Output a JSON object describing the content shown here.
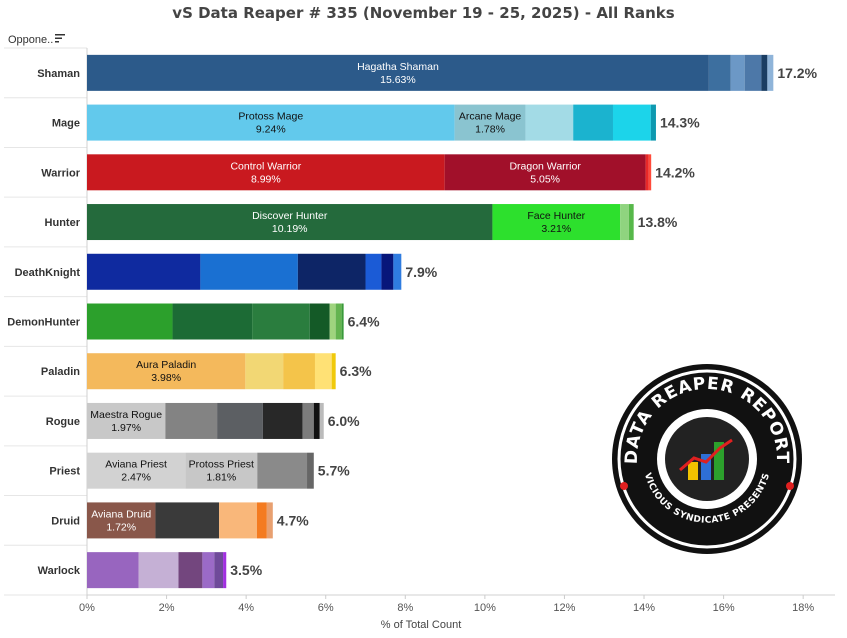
{
  "title": "vS Data Reaper # 335 (November 19 - 25, 2025) - All Ranks",
  "header_label": "Oppone..",
  "logo": {
    "line1": "DATA REAPER REPORT",
    "line2": "VICIOUS SYNDICATE PRESENTS"
  },
  "chart_data": {
    "type": "bar",
    "orientation": "horizontal",
    "stacked": true,
    "xlabel": "% of Total Count",
    "xlim": [
      0,
      18.8
    ],
    "xticks": [
      "0%",
      "2%",
      "4%",
      "6%",
      "8%",
      "10%",
      "12%",
      "14%",
      "16%",
      "18%"
    ],
    "xtick_values": [
      0,
      2,
      4,
      6,
      8,
      10,
      12,
      14,
      16,
      18
    ],
    "grid": false,
    "classes": [
      {
        "name": "Shaman",
        "total": "17.2%",
        "segments": [
          {
            "value": 15.63,
            "color": "#2c5a8a",
            "label": "Hagatha Shaman",
            "pct": "15.63%",
            "dark": true
          },
          {
            "value": 0.55,
            "color": "#3d6f9f"
          },
          {
            "value": 0.35,
            "color": "#6c98c6"
          },
          {
            "value": 0.42,
            "color": "#4d78a8"
          },
          {
            "value": 0.15,
            "color": "#1a3d63"
          },
          {
            "value": 0.15,
            "color": "#8fb4d9"
          }
        ]
      },
      {
        "name": "Mage",
        "total": "14.3%",
        "segments": [
          {
            "value": 9.24,
            "color": "#62c9ec",
            "label": "Protoss Mage",
            "pct": "9.24%",
            "dark": false
          },
          {
            "value": 1.78,
            "color": "#8ac4d0",
            "label": "Arcane Mage",
            "pct": "1.78%",
            "dark": false
          },
          {
            "value": 1.2,
            "color": "#a3dbe6"
          },
          {
            "value": 1.0,
            "color": "#1bb3cf"
          },
          {
            "value": 0.95,
            "color": "#1cd4ea"
          },
          {
            "value": 0.13,
            "color": "#0e99b0"
          }
        ]
      },
      {
        "name": "Warrior",
        "total": "14.2%",
        "segments": [
          {
            "value": 8.99,
            "color": "#c9191f",
            "label": "Control Warrior",
            "pct": "8.99%",
            "dark": true
          },
          {
            "value": 5.05,
            "color": "#a1102a",
            "label": "Dragon Warrior",
            "pct": "5.05%",
            "dark": true
          },
          {
            "value": 0.08,
            "color": "#e82828"
          },
          {
            "value": 0.06,
            "color": "#ff4a3a"
          }
        ]
      },
      {
        "name": "Hunter",
        "total": "13.8%",
        "segments": [
          {
            "value": 10.19,
            "color": "#246a3c",
            "label": "Discover Hunter",
            "pct": "10.19%",
            "dark": true
          },
          {
            "value": 3.21,
            "color": "#2de02d",
            "label": "Face Hunter",
            "pct": "3.21%",
            "dark": false
          },
          {
            "value": 0.22,
            "color": "#8fd47f"
          },
          {
            "value": 0.12,
            "color": "#57b84a"
          }
        ]
      },
      {
        "name": "DeathKnight",
        "total": "7.9%",
        "segments": [
          {
            "value": 2.85,
            "color": "#0f2a9f"
          },
          {
            "value": 2.45,
            "color": "#1a70d2"
          },
          {
            "value": 1.7,
            "color": "#0d2566"
          },
          {
            "value": 0.4,
            "color": "#1b5bd6"
          },
          {
            "value": 0.3,
            "color": "#07167a"
          },
          {
            "value": 0.2,
            "color": "#2f7ce0"
          }
        ]
      },
      {
        "name": "DemonHunter",
        "total": "6.4%",
        "segments": [
          {
            "value": 2.15,
            "color": "#2ca02c"
          },
          {
            "value": 2.0,
            "color": "#1c6b35"
          },
          {
            "value": 1.45,
            "color": "#2a7d3e"
          },
          {
            "value": 0.5,
            "color": "#145a27"
          },
          {
            "value": 0.15,
            "color": "#9fd47e"
          },
          {
            "value": 0.15,
            "color": "#64b450"
          },
          {
            "value": 0.05,
            "color": "#3a9a3a"
          }
        ]
      },
      {
        "name": "Paladin",
        "total": "6.3%",
        "segments": [
          {
            "value": 3.98,
            "color": "#f4b95c",
            "label": "Aura Paladin",
            "pct": "3.98%",
            "dark": false
          },
          {
            "value": 0.95,
            "color": "#f2d774"
          },
          {
            "value": 0.8,
            "color": "#f4c44a"
          },
          {
            "value": 0.42,
            "color": "#ffe175"
          },
          {
            "value": 0.1,
            "color": "#f0c90a"
          }
        ]
      },
      {
        "name": "Rogue",
        "total": "6.0%",
        "segments": [
          {
            "value": 1.97,
            "color": "#c8c8c8",
            "label": "Maestra Rogue",
            "pct": "1.97%",
            "dark": false
          },
          {
            "value": 1.3,
            "color": "#838383"
          },
          {
            "value": 1.15,
            "color": "#5c5f63"
          },
          {
            "value": 1.0,
            "color": "#282828"
          },
          {
            "value": 0.28,
            "color": "#7c7c7c"
          },
          {
            "value": 0.15,
            "color": "#111111"
          },
          {
            "value": 0.1,
            "color": "#bbbbbb"
          }
        ]
      },
      {
        "name": "Priest",
        "total": "5.7%",
        "segments": [
          {
            "value": 2.47,
            "color": "#d2d2d2",
            "label": "Aviana Priest",
            "pct": "2.47%",
            "dark": false
          },
          {
            "value": 1.81,
            "color": "#c7c7c7",
            "label": "Protoss Priest",
            "pct": "1.81%",
            "dark": false
          },
          {
            "value": 1.25,
            "color": "#8a8a8a"
          },
          {
            "value": 0.17,
            "color": "#666666"
          }
        ]
      },
      {
        "name": "Druid",
        "total": "4.7%",
        "segments": [
          {
            "value": 1.72,
            "color": "#89574a",
            "label": "Aviana Druid",
            "pct": "1.72%",
            "dark": true
          },
          {
            "value": 1.6,
            "color": "#3a3a3a",
            "hidden": true
          },
          {
            "value": 0.95,
            "color": "#f9b77a"
          },
          {
            "value": 0.25,
            "color": "#f47b20"
          },
          {
            "value": 0.15,
            "color": "#e8a070"
          }
        ]
      },
      {
        "name": "Warlock",
        "total": "3.5%",
        "segments": [
          {
            "value": 1.3,
            "color": "#9865bf"
          },
          {
            "value": 1.0,
            "color": "#c5b0d5"
          },
          {
            "value": 0.6,
            "color": "#73467e"
          },
          {
            "value": 0.3,
            "color": "#9b6ac7"
          },
          {
            "value": 0.22,
            "color": "#6f4a9a"
          },
          {
            "value": 0.08,
            "color": "#a12fe0"
          }
        ]
      }
    ]
  }
}
